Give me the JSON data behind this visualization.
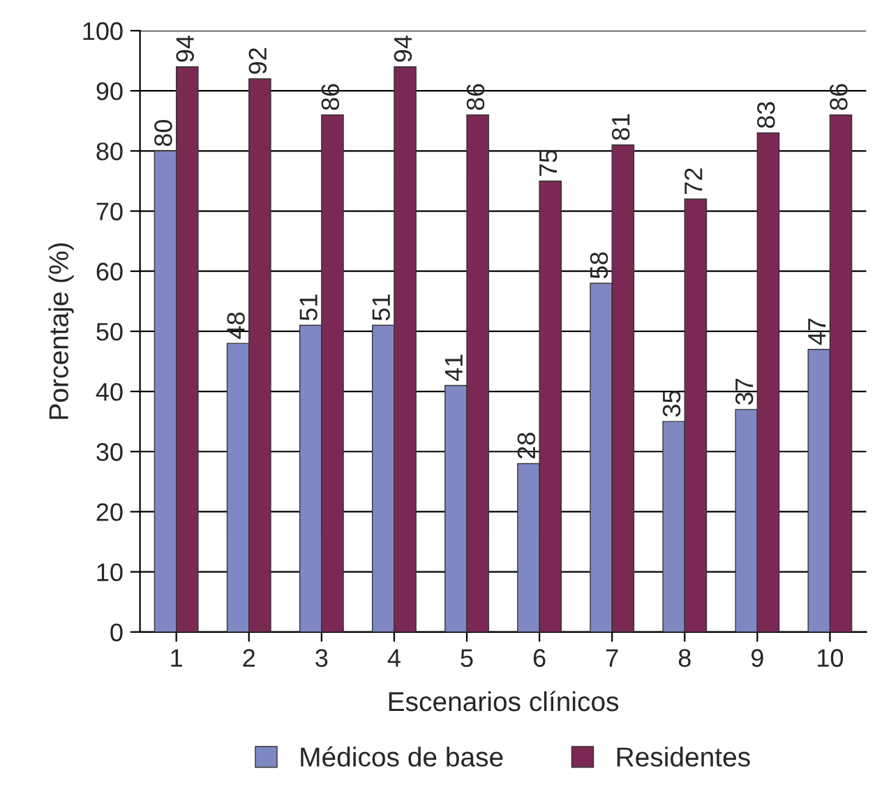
{
  "chart_data": {
    "type": "bar",
    "xlabel": "Escenarios clínicos",
    "ylabel": "Porcentaje (%)",
    "categories": [
      "1",
      "2",
      "3",
      "4",
      "5",
      "6",
      "7",
      "8",
      "9",
      "10"
    ],
    "series": [
      {
        "name": "Médicos de base",
        "color": "#8088c4",
        "values": [
          80,
          48,
          51,
          51,
          41,
          28,
          58,
          35,
          37,
          47
        ]
      },
      {
        "name": "Residentes",
        "color": "#7b2855",
        "values": [
          94,
          92,
          86,
          94,
          86,
          75,
          81,
          72,
          83,
          86
        ]
      }
    ],
    "ylim": [
      0,
      100
    ],
    "yticks": [
      0,
      10,
      20,
      30,
      40,
      50,
      60,
      70,
      80,
      90,
      100
    ],
    "grid": "y",
    "legend": "bottom",
    "data_labels": true
  }
}
